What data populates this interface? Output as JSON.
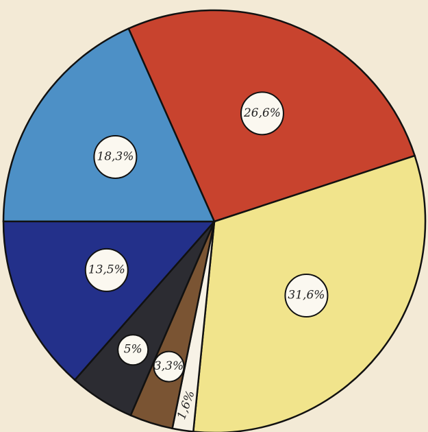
{
  "chart_data": {
    "type": "pie",
    "values": [
      26.6,
      31.6,
      1.6,
      3.3,
      5,
      13.5,
      18.3
    ],
    "value_labels": [
      "26,6%",
      "31,6%",
      "1,6%",
      "3,3%",
      "5%",
      "13,5%",
      "18,3%"
    ],
    "colors": [
      "#c8432e",
      "#f1e48c",
      "#f7f2e6",
      "#7a5433",
      "#2c2c32",
      "#23308a",
      "#4d90c6"
    ]
  }
}
